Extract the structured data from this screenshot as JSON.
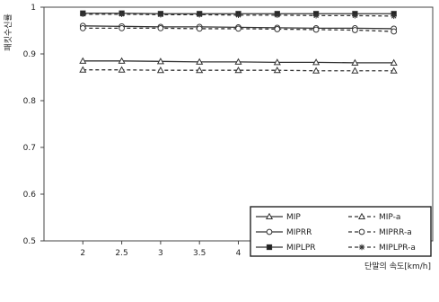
{
  "chart_data": {
    "type": "line",
    "title": "",
    "ylabel": "패킷수신률",
    "xlabel": "단말의 속도[km/h]",
    "x": [
      2,
      2.5,
      3,
      3.5,
      4,
      4.5,
      5,
      5.5,
      6
    ],
    "x_tick_labels": [
      "2",
      "2.5",
      "3",
      "3.5",
      "4",
      "4.5",
      "5",
      "5.5",
      "6"
    ],
    "xlim": [
      1.5,
      6.5
    ],
    "ylim": [
      0.5,
      1.0
    ],
    "y_ticks": [
      0.5,
      0.6,
      0.7,
      0.8,
      0.9,
      1.0
    ],
    "y_tick_labels": [
      "0.5",
      "0.6",
      "0.7",
      "0.8",
      "0.9",
      "1"
    ],
    "grid": false,
    "legend_position": "bottom-right",
    "series": [
      {
        "name": "MIP",
        "marker": "triangle",
        "dash": "solid",
        "values": [
          0.885,
          0.885,
          0.884,
          0.883,
          0.883,
          0.882,
          0.882,
          0.881,
          0.881
        ]
      },
      {
        "name": "MIP-a",
        "marker": "triangle",
        "dash": "dashed",
        "values": [
          0.866,
          0.866,
          0.865,
          0.865,
          0.865,
          0.865,
          0.864,
          0.864,
          0.864
        ]
      },
      {
        "name": "MIPRR",
        "marker": "circle",
        "dash": "solid",
        "values": [
          0.96,
          0.959,
          0.958,
          0.958,
          0.957,
          0.956,
          0.955,
          0.955,
          0.954
        ]
      },
      {
        "name": "MIPRR-a",
        "marker": "circle",
        "dash": "dashed",
        "values": [
          0.955,
          0.955,
          0.955,
          0.954,
          0.954,
          0.953,
          0.952,
          0.951,
          0.948
        ]
      },
      {
        "name": "MIPLPR",
        "marker": "square",
        "dash": "solid",
        "values": [
          0.987,
          0.987,
          0.986,
          0.986,
          0.986,
          0.986,
          0.986,
          0.986,
          0.986
        ]
      },
      {
        "name": "MIPLPR-a",
        "marker": "star",
        "dash": "dashed",
        "values": [
          0.985,
          0.985,
          0.984,
          0.984,
          0.983,
          0.983,
          0.982,
          0.982,
          0.981
        ]
      }
    ]
  }
}
